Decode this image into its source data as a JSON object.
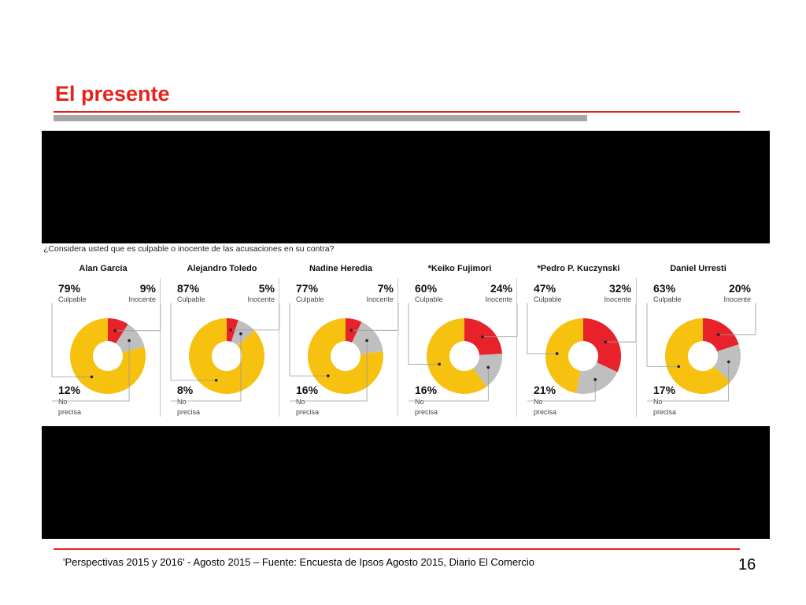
{
  "slide": {
    "title": "El presente",
    "footer": "'Perspectivas 2015 y 2016' - Agosto 2015 – Fuente: Encuesta de Ipsos Agosto 2015, Diario El Comercio",
    "page_number": "16"
  },
  "colors": {
    "title_red": "#e8221a",
    "culpable": "#f7c10f",
    "inocente": "#e8222a",
    "no_precisa": "#bfbfbf"
  },
  "chart_data": {
    "type": "pie",
    "title": "¿Considera usted que es culpable o inocente de las acusaciones en su contra?",
    "labels": {
      "culpable": "Culpable",
      "inocente": "Inocente",
      "no_precisa_1": "No",
      "no_precisa_2": "precisa"
    },
    "candidates": [
      {
        "name": "Alan García",
        "culpable": 79,
        "inocente": 9,
        "no_precisa": 12,
        "culpable_text": "79%",
        "inocente_text": "9%",
        "no_precisa_text": "12%"
      },
      {
        "name": "Alejandro Toledo",
        "culpable": 87,
        "inocente": 5,
        "no_precisa": 8,
        "culpable_text": "87%",
        "inocente_text": "5%",
        "no_precisa_text": "8%"
      },
      {
        "name": "Nadine Heredia",
        "culpable": 77,
        "inocente": 7,
        "no_precisa": 16,
        "culpable_text": "77%",
        "inocente_text": "7%",
        "no_precisa_text": "16%"
      },
      {
        "name": "*Keiko Fujimori",
        "culpable": 60,
        "inocente": 24,
        "no_precisa": 16,
        "culpable_text": "60%",
        "inocente_text": "24%",
        "no_precisa_text": "16%"
      },
      {
        "name": "*Pedro P. Kuczynski",
        "culpable": 47,
        "inocente": 32,
        "no_precisa": 21,
        "culpable_text": "47%",
        "inocente_text": "32%",
        "no_precisa_text": "21%"
      },
      {
        "name": "Daniel Urresti",
        "culpable": 63,
        "inocente": 20,
        "no_precisa": 17,
        "culpable_text": "63%",
        "inocente_text": "20%",
        "no_precisa_text": "17%"
      }
    ]
  }
}
